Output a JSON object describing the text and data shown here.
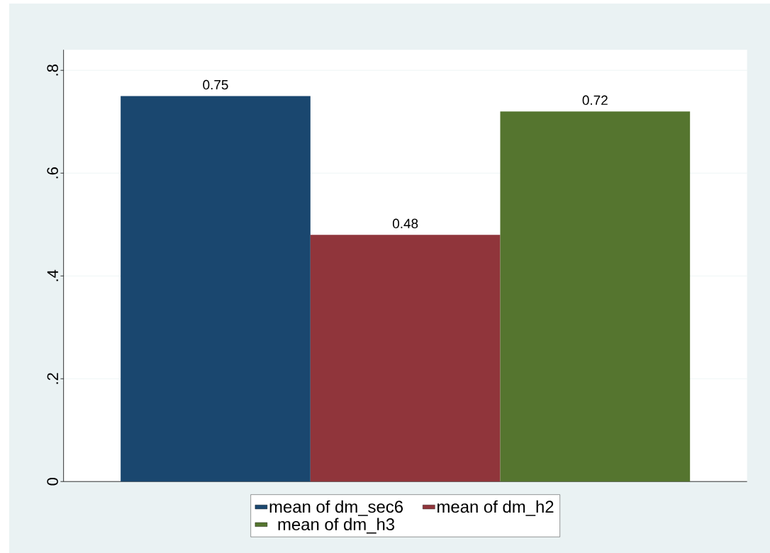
{
  "chart_data": {
    "type": "bar",
    "categories": [
      null
    ],
    "series": [
      {
        "name": "mean of dm_sec6",
        "color": "#1a476f",
        "values": [
          0.75
        ]
      },
      {
        "name": "mean of dm_h2",
        "color": "#90353b",
        "values": [
          0.48
        ]
      },
      {
        "name": "mean of dm_h3",
        "color": "#55752f",
        "values": [
          0.72
        ]
      }
    ],
    "ylim": [
      0,
      0.84
    ],
    "yticks": [
      0,
      {
        "value": 0.2,
        "label": ".2"
      },
      {
        "value": 0.4,
        "label": ".4"
      },
      {
        "value": 0.6,
        "label": ".6"
      },
      {
        "value": 0.8,
        "label": ".8"
      }
    ],
    "grid": "y",
    "legend": "bottom",
    "data_labels": true
  }
}
